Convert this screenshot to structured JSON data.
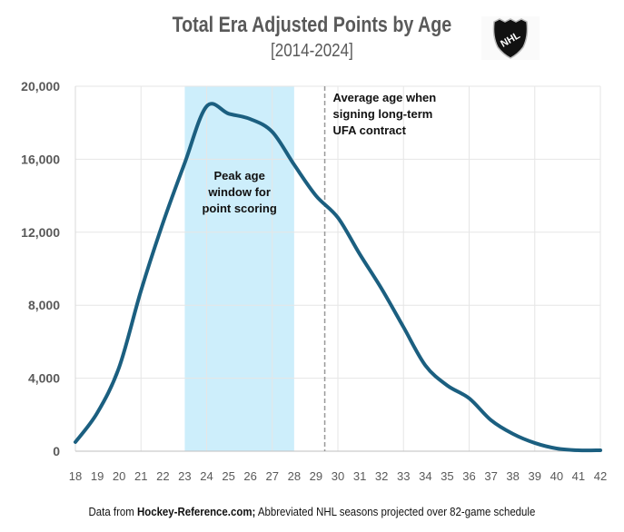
{
  "chart_data": {
    "type": "line",
    "title": "Total Era Adjusted Points by Age",
    "subtitle": "[2014-2024]",
    "xlabel": "",
    "ylabel": "",
    "xlim": [
      18,
      42
    ],
    "ylim": [
      0,
      20000
    ],
    "x": [
      18,
      19,
      20,
      21,
      22,
      23,
      24,
      25,
      26,
      27,
      28,
      29,
      30,
      31,
      32,
      33,
      34,
      35,
      36,
      37,
      38,
      39,
      40,
      41,
      42
    ],
    "series": [
      {
        "name": "Total Era Adjusted Points",
        "values": [
          500,
          2100,
          4600,
          8800,
          12500,
          15800,
          18900,
          18500,
          18200,
          17500,
          15700,
          14000,
          12800,
          10800,
          8900,
          6800,
          4700,
          3600,
          2900,
          1700,
          950,
          450,
          150,
          50,
          50
        ],
        "color": "#1b5f80"
      }
    ],
    "x_ticks": [
      "18",
      "19",
      "20",
      "21",
      "22",
      "23",
      "24",
      "25",
      "26",
      "27",
      "28",
      "29",
      "30",
      "31",
      "32",
      "33",
      "34",
      "35",
      "36",
      "37",
      "38",
      "39",
      "40",
      "41",
      "42"
    ],
    "y_ticks": [
      {
        "value": 0,
        "label": "0"
      },
      {
        "value": 4000,
        "label": "4,000"
      },
      {
        "value": 8000,
        "label": "8,000"
      },
      {
        "value": 12000,
        "label": "12,000"
      },
      {
        "value": 16000,
        "label": "16,000"
      },
      {
        "value": 20000,
        "label": "20,000"
      }
    ],
    "grid": true,
    "shaded_band": {
      "from": 23,
      "to": 28,
      "color": "#cdeefb",
      "label_lines": [
        "Peak age",
        "window for",
        "point scoring"
      ]
    },
    "reference_line": {
      "x": 29.4,
      "style": "dashed",
      "label_lines": [
        "Average age when",
        "signing long-term",
        "UFA contract"
      ]
    }
  },
  "logo": {
    "text": "NHL"
  },
  "footer": {
    "prefix": "Data from ",
    "source": "Hockey-Reference.com;",
    "suffix": " Abbreviated NHL seasons projected over 82-game schedule"
  }
}
